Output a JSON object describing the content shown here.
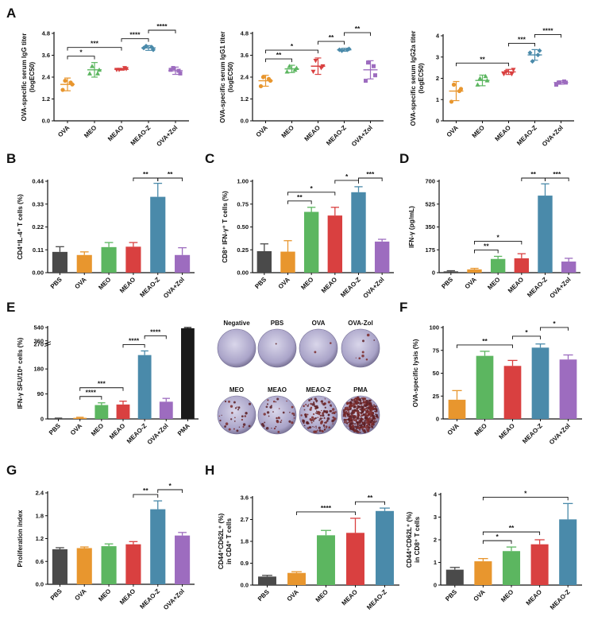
{
  "colors": {
    "PBS": "#4a4a4a",
    "OVA": "#e8962e",
    "MEO": "#5cb660",
    "MEAO": "#d94040",
    "MEAO-Z": "#4a8aaa",
    "OVA+Zol": "#9d6cbf",
    "PMA": "#1a1a1a"
  },
  "panel_labels": [
    "A",
    "B",
    "C",
    "D",
    "E",
    "F",
    "G",
    "H"
  ],
  "well_images": {
    "labels": [
      "Negative",
      "PBS",
      "OVA",
      "OVA-Zol",
      "MEO",
      "MEAO",
      "MEAO-Z",
      "PMA"
    ],
    "spot_density": [
      0,
      1,
      2,
      8,
      30,
      40,
      130,
      500
    ]
  },
  "chart_data": [
    {
      "id": "A1",
      "panel": "A",
      "type": "scatter",
      "categories": [
        "OVA",
        "MEO",
        "MEAO",
        "MEAO-Z",
        "OVA+Zol"
      ],
      "points": [
        [
          1.7,
          2.0,
          2.2,
          2.1
        ],
        [
          2.6,
          2.8,
          3.0,
          2.6
        ],
        [
          2.8,
          2.85,
          2.8,
          2.9
        ],
        [
          4.0,
          3.9,
          4.1,
          4.05
        ],
        [
          2.8,
          2.6,
          2.9,
          2.75
        ]
      ],
      "means": [
        2.0,
        2.8,
        2.83,
        4.0,
        2.75
      ],
      "errors": [
        0.35,
        0.4,
        0.05,
        0.13,
        0.2
      ],
      "ylabel": "OVA-specific serum IgG titer\n(logEC50)",
      "ylim": [
        0,
        4.8
      ],
      "yticks": [
        "0.0",
        "1.2",
        "2.4",
        "3.6",
        "4.8"
      ],
      "sig": [
        {
          "a": 0,
          "b": 1,
          "label": "*"
        },
        {
          "a": 0,
          "b": 2,
          "label": "***"
        },
        {
          "a": 2,
          "b": 3,
          "label": "****"
        },
        {
          "a": 3,
          "b": 4,
          "label": "****"
        }
      ]
    },
    {
      "id": "A2",
      "panel": "A",
      "type": "scatter",
      "categories": [
        "OVA",
        "MEO",
        "MEAO",
        "MEAO-Z",
        "OVA+Zol"
      ],
      "points": [
        [
          1.9,
          2.2,
          2.4,
          2.3
        ],
        [
          2.7,
          2.9,
          3.0,
          2.8
        ],
        [
          2.7,
          3.0,
          3.3,
          2.9
        ],
        [
          3.9,
          3.95,
          3.85,
          3.9
        ],
        [
          2.2,
          2.5,
          3.2,
          3.0
        ]
      ],
      "means": [
        2.2,
        2.85,
        3.0,
        3.9,
        2.8
      ],
      "errors": [
        0.3,
        0.2,
        0.45,
        0.08,
        0.5
      ],
      "ylabel": "OVA-specific serum IgG1 titer\n(logEC50)",
      "ylim": [
        0,
        4.8
      ],
      "yticks": [
        "0.0",
        "1.2",
        "2.4",
        "3.6",
        "4.8"
      ],
      "sig": [
        {
          "a": 0,
          "b": 1,
          "label": "**"
        },
        {
          "a": 0,
          "b": 2,
          "label": "*"
        },
        {
          "a": 2,
          "b": 3,
          "label": "**"
        },
        {
          "a": 3,
          "b": 4,
          "label": "**"
        }
      ]
    },
    {
      "id": "A3",
      "panel": "A",
      "type": "scatter",
      "categories": [
        "OVA",
        "MEO",
        "MEAO",
        "MEAO-Z",
        "OVA+Zol"
      ],
      "points": [
        [
          0.9,
          1.5,
          1.7,
          1.4
        ],
        [
          1.7,
          1.9,
          2.0,
          2.1
        ],
        [
          2.2,
          2.4,
          2.3,
          2.2
        ],
        [
          3.2,
          3.3,
          2.8,
          3.1
        ],
        [
          1.7,
          1.8,
          1.8,
          1.85
        ]
      ],
      "means": [
        1.4,
        1.9,
        2.3,
        3.1,
        1.8
      ],
      "errors": [
        0.45,
        0.25,
        0.12,
        0.25,
        0.08
      ],
      "ylabel": "OVA-specific serum IgG2a titer\n(logEC50)",
      "ylim": [
        0,
        4
      ],
      "yticks": [
        "0",
        "1",
        "2",
        "3",
        "4"
      ],
      "sig": [
        {
          "a": 0,
          "b": 2,
          "label": "**"
        },
        {
          "a": 2,
          "b": 3,
          "label": "***"
        },
        {
          "a": 3,
          "b": 4,
          "label": "****"
        }
      ]
    },
    {
      "id": "B",
      "panel": "B",
      "type": "bar",
      "categories": [
        "PBS",
        "OVA",
        "MEO",
        "MEAO",
        "MEAO-Z",
        "OVA+Zol"
      ],
      "values": [
        0.1,
        0.085,
        0.123,
        0.125,
        0.365,
        0.085
      ],
      "errors": [
        0.025,
        0.015,
        0.022,
        0.02,
        0.065,
        0.035
      ],
      "ylabel": "CD4⁺IL-4⁺ T cells (%)",
      "ylim": [
        0,
        0.44
      ],
      "yticks": [
        "0.00",
        "0.11",
        "0.22",
        "0.33",
        "0.44"
      ],
      "sig": [
        {
          "a": 3,
          "b": 4,
          "label": "**"
        },
        {
          "a": 4,
          "b": 5,
          "label": "**"
        }
      ]
    },
    {
      "id": "C",
      "panel": "C",
      "type": "bar",
      "categories": [
        "PBS",
        "OVA",
        "MEO",
        "MEAO",
        "MEAO-Z",
        "OVA+Zol"
      ],
      "values": [
        0.235,
        0.23,
        0.665,
        0.625,
        0.88,
        0.34
      ],
      "errors": [
        0.08,
        0.12,
        0.05,
        0.09,
        0.06,
        0.025
      ],
      "ylabel": "CD8⁺ IFN-γ⁺ T cells (%)",
      "ylim": [
        0,
        1.0
      ],
      "yticks": [
        "0.00",
        "0.25",
        "0.50",
        "0.75",
        "1.00"
      ],
      "sig": [
        {
          "a": 1,
          "b": 2,
          "label": "**"
        },
        {
          "a": 1,
          "b": 3,
          "label": "*"
        },
        {
          "a": 3,
          "b": 4,
          "label": "*"
        },
        {
          "a": 4,
          "b": 5,
          "label": "***"
        }
      ]
    },
    {
      "id": "D",
      "panel": "D",
      "type": "bar",
      "categories": [
        "PBS",
        "OVA",
        "MEO",
        "MEAO",
        "MEAO-Z",
        "OVA+Zol"
      ],
      "values": [
        10,
        25,
        105,
        110,
        590,
        85
      ],
      "errors": [
        5,
        8,
        20,
        35,
        90,
        25
      ],
      "ylabel": "IFN-γ (pg/mL)",
      "ylim": [
        0,
        700
      ],
      "yticks": [
        "0",
        "175",
        "350",
        "525",
        "700"
      ],
      "sig": [
        {
          "a": 1,
          "b": 2,
          "label": "**"
        },
        {
          "a": 1,
          "b": 3,
          "label": "*"
        },
        {
          "a": 3,
          "b": 4,
          "label": "**"
        },
        {
          "a": 4,
          "b": 5,
          "label": "***"
        }
      ]
    },
    {
      "id": "E",
      "panel": "E",
      "type": "bar",
      "categories": [
        "PBS",
        "OVA",
        "MEO",
        "MEAO",
        "MEAO-Z",
        "OVA+Zol",
        "PMA"
      ],
      "values": [
        2,
        4,
        50,
        52,
        230,
        62,
        530
      ],
      "errors": [
        1,
        2,
        8,
        12,
        15,
        12,
        10
      ],
      "ylabel": "IFN-γ SFU/10⁶ cells (%)",
      "ylim": [
        0,
        540
      ],
      "axis_break": [
        270,
        360
      ],
      "yticks": [
        "0",
        "90",
        "180",
        "270",
        "360",
        "540"
      ],
      "sig": [
        {
          "a": 1,
          "b": 2,
          "label": "****"
        },
        {
          "a": 1,
          "b": 3,
          "label": "***"
        },
        {
          "a": 3,
          "b": 4,
          "label": "****"
        },
        {
          "a": 4,
          "b": 5,
          "label": "****"
        }
      ]
    },
    {
      "id": "F",
      "panel": "F",
      "type": "bar",
      "categories": [
        "OVA",
        "MEO",
        "MEAO",
        "MEAO-Z",
        "OVA+Zol"
      ],
      "values": [
        21,
        69,
        58,
        78,
        65
      ],
      "errors": [
        10,
        5,
        6,
        4,
        5
      ],
      "ylabel": "OVA-specific lysis (%)",
      "ylim": [
        0,
        100
      ],
      "yticks": [
        "0",
        "25",
        "50",
        "75",
        "100"
      ],
      "sig": [
        {
          "a": 0,
          "b": 2,
          "label": "**"
        },
        {
          "a": 2,
          "b": 3,
          "label": "*"
        },
        {
          "a": 3,
          "b": 4,
          "label": "*"
        }
      ]
    },
    {
      "id": "G",
      "panel": "G",
      "type": "bar",
      "categories": [
        "PBS",
        "OVA",
        "MEO",
        "MEAO",
        "MEAO-Z",
        "OVA+Zol"
      ],
      "values": [
        0.92,
        0.95,
        1.0,
        1.05,
        1.97,
        1.28
      ],
      "errors": [
        0.04,
        0.03,
        0.06,
        0.07,
        0.22,
        0.08
      ],
      "ylabel": "Proliferation index",
      "ylim": [
        0,
        2.4
      ],
      "yticks": [
        "0.0",
        "0.6",
        "1.2",
        "1.8",
        "2.4"
      ],
      "sig": [
        {
          "a": 3,
          "b": 4,
          "label": "**"
        },
        {
          "a": 4,
          "b": 5,
          "label": "*"
        }
      ]
    },
    {
      "id": "H1",
      "panel": "H",
      "type": "bar",
      "categories": [
        "PBS",
        "OVA",
        "MEO",
        "MEAO",
        "MEAO-Z"
      ],
      "values": [
        0.35,
        0.5,
        2.05,
        2.15,
        3.05
      ],
      "errors": [
        0.05,
        0.05,
        0.2,
        0.6,
        0.12
      ],
      "ylabel": "CD44⁺CD62L⁺ (%)\nin CD4⁺ T cells",
      "ylim": [
        0,
        3.6
      ],
      "yticks": [
        "0.0",
        "0.9",
        "1.8",
        "2.7",
        "3.6"
      ],
      "sig": [
        {
          "a": 1,
          "b": 3,
          "label": "****"
        },
        {
          "a": 3,
          "b": 4,
          "label": "**"
        }
      ]
    },
    {
      "id": "H2",
      "panel": "H",
      "type": "bar",
      "categories": [
        "PBS",
        "OVA",
        "MEO",
        "MEAO",
        "MEAO-Z"
      ],
      "values": [
        0.68,
        1.05,
        1.5,
        1.8,
        2.9
      ],
      "errors": [
        0.1,
        0.12,
        0.18,
        0.2,
        0.7
      ],
      "ylabel": "CD44⁺CD62L⁺ (%)\nin CD8⁺ T cells",
      "ylim": [
        0,
        4
      ],
      "yticks": [
        "0",
        "1",
        "2",
        "3",
        "4"
      ],
      "sig": [
        {
          "a": 1,
          "b": 2,
          "label": "*"
        },
        {
          "a": 1,
          "b": 3,
          "label": "**"
        },
        {
          "a": 1,
          "b": 4,
          "label": "*"
        }
      ]
    }
  ]
}
